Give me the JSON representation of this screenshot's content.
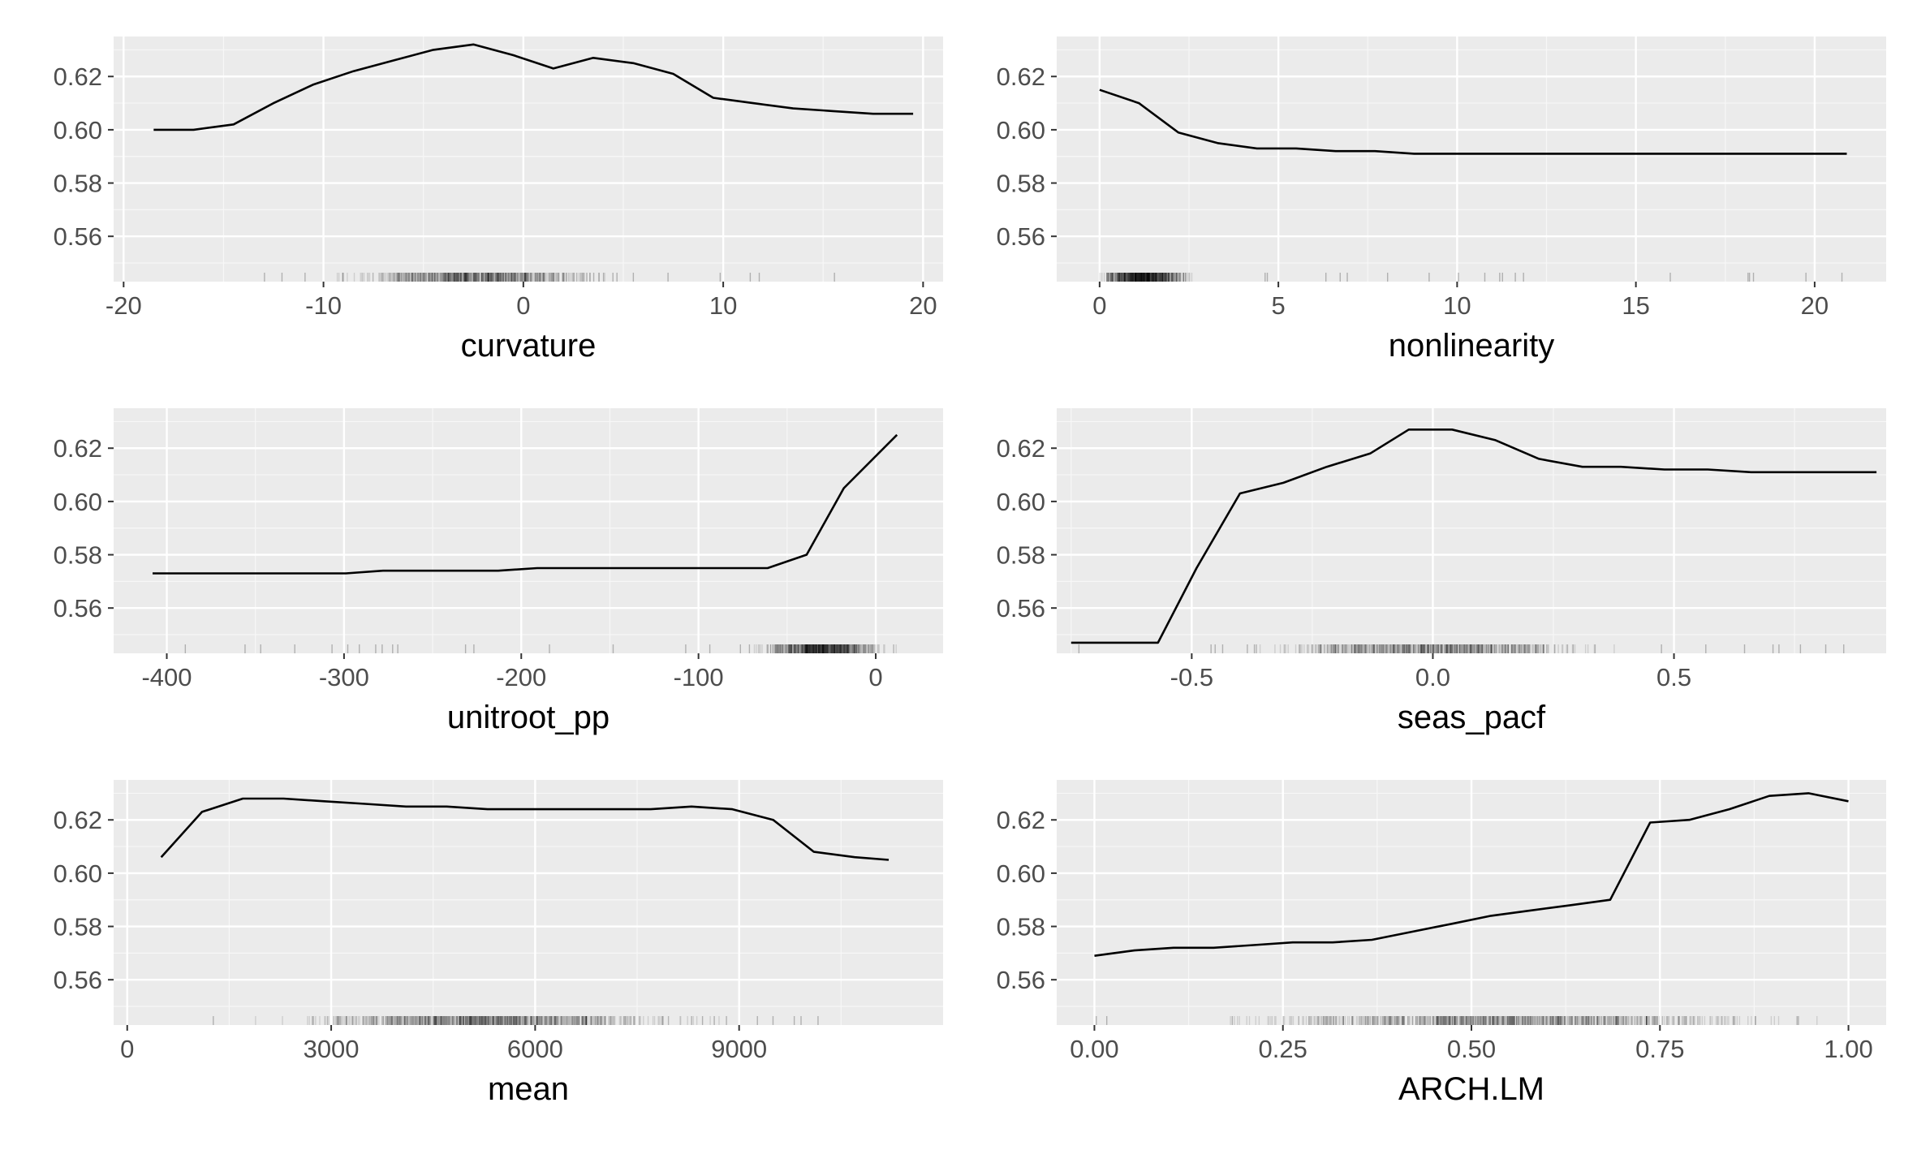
{
  "chart_data": [
    {
      "type": "line",
      "xlabel": "curvature",
      "ylabel": "",
      "xlim": [
        -20.5,
        21
      ],
      "ylim": [
        0.543,
        0.635
      ],
      "xticks": [
        -20,
        -10,
        0,
        10,
        20
      ],
      "xtick_labels": [
        "-20",
        "-10",
        "0",
        "10",
        "20"
      ],
      "yticks": [
        0.56,
        0.58,
        0.6,
        0.62
      ],
      "ytick_labels": [
        "0.56",
        "0.58",
        "0.60",
        "0.62"
      ],
      "grid": true,
      "rug": true,
      "x": [
        -18.5,
        -16.5,
        -14.5,
        -12.5,
        -10.5,
        -8.5,
        -6.5,
        -4.5,
        -2.5,
        -0.5,
        1.5,
        3.5,
        5.5,
        7.5,
        9.5,
        11.5,
        13.5,
        15.5,
        17.5,
        19.5
      ],
      "y": [
        0.6,
        0.6,
        0.602,
        0.61,
        0.617,
        0.622,
        0.626,
        0.63,
        0.632,
        0.628,
        0.623,
        0.627,
        0.625,
        0.621,
        0.612,
        0.61,
        0.608,
        0.607,
        0.606,
        0.606
      ]
    },
    {
      "type": "line",
      "xlabel": "nonlinearity",
      "ylabel": "",
      "xlim": [
        -1.2,
        22.0
      ],
      "ylim": [
        0.543,
        0.635
      ],
      "xticks": [
        0,
        5,
        10,
        15,
        20
      ],
      "xtick_labels": [
        "0",
        "5",
        "10",
        "15",
        "20"
      ],
      "yticks": [
        0.56,
        0.58,
        0.6,
        0.62
      ],
      "ytick_labels": [
        "0.56",
        "0.58",
        "0.60",
        "0.62"
      ],
      "grid": true,
      "rug": true,
      "x": [
        0,
        1.1,
        2.2,
        3.3,
        4.4,
        5.5,
        6.6,
        7.7,
        8.8,
        9.9,
        11.0,
        12.1,
        13.2,
        14.3,
        15.4,
        16.5,
        17.6,
        18.7,
        19.8,
        20.9
      ],
      "y": [
        0.615,
        0.61,
        0.599,
        0.595,
        0.593,
        0.593,
        0.592,
        0.592,
        0.591,
        0.591,
        0.591,
        0.591,
        0.591,
        0.591,
        0.591,
        0.591,
        0.591,
        0.591,
        0.591,
        0.591
      ]
    },
    {
      "type": "line",
      "xlabel": "unitroot_pp",
      "ylabel": "",
      "xlim": [
        -430,
        38
      ],
      "ylim": [
        0.543,
        0.635
      ],
      "xticks": [
        -400,
        -300,
        -200,
        -100,
        0
      ],
      "xtick_labels": [
        "-400",
        "-300",
        "-200",
        "-100",
        "0"
      ],
      "yticks": [
        0.56,
        0.58,
        0.6,
        0.62
      ],
      "ytick_labels": [
        "0.56",
        "0.58",
        "0.60",
        "0.62"
      ],
      "grid": true,
      "rug": true,
      "x": [
        -408,
        -386,
        -364,
        -343,
        -321,
        -299,
        -278,
        -256,
        -234,
        -213,
        -191,
        -169,
        -148,
        -126,
        -104,
        -83,
        -61,
        -39,
        -18,
        12
      ],
      "y": [
        0.573,
        0.573,
        0.573,
        0.573,
        0.573,
        0.573,
        0.574,
        0.574,
        0.574,
        0.574,
        0.575,
        0.575,
        0.575,
        0.575,
        0.575,
        0.575,
        0.575,
        0.58,
        0.605,
        0.625
      ]
    },
    {
      "type": "line",
      "xlabel": "seas_pacf",
      "ylabel": "",
      "xlim": [
        -0.78,
        0.94
      ],
      "ylim": [
        0.543,
        0.635
      ],
      "xticks": [
        -0.5,
        0.0,
        0.5
      ],
      "xtick_labels": [
        "-0.5",
        "0.0",
        "0.5"
      ],
      "yticks": [
        0.56,
        0.58,
        0.6,
        0.62
      ],
      "ytick_labels": [
        "0.56",
        "0.58",
        "0.60",
        "0.62"
      ],
      "grid": true,
      "rug": true,
      "x": [
        -0.75,
        -0.66,
        -0.57,
        -0.49,
        -0.4,
        -0.31,
        -0.22,
        -0.13,
        -0.05,
        0.04,
        0.13,
        0.22,
        0.31,
        0.39,
        0.48,
        0.57,
        0.66,
        0.74,
        0.83,
        0.92
      ],
      "y": [
        0.547,
        0.547,
        0.547,
        0.575,
        0.603,
        0.607,
        0.613,
        0.618,
        0.627,
        0.627,
        0.623,
        0.616,
        0.613,
        0.613,
        0.612,
        0.612,
        0.611,
        0.611,
        0.611,
        0.611
      ]
    },
    {
      "type": "line",
      "xlabel": "mean",
      "ylabel": "",
      "xlim": [
        -200,
        12000
      ],
      "ylim": [
        0.543,
        0.635
      ],
      "xticks": [
        0,
        3000,
        6000,
        9000
      ],
      "xtick_labels": [
        "0",
        "3000",
        "6000",
        "9000"
      ],
      "yticks": [
        0.56,
        0.58,
        0.6,
        0.62
      ],
      "ytick_labels": [
        "0.56",
        "0.58",
        "0.60",
        "0.62"
      ],
      "grid": true,
      "rug": true,
      "x": [
        500,
        1100,
        1700,
        2300,
        2900,
        3500,
        4100,
        4700,
        5300,
        5900,
        6500,
        7100,
        7700,
        8300,
        8900,
        9500,
        10100,
        10700,
        11200
      ],
      "y": [
        0.606,
        0.623,
        0.628,
        0.628,
        0.627,
        0.626,
        0.625,
        0.625,
        0.624,
        0.624,
        0.624,
        0.624,
        0.624,
        0.625,
        0.624,
        0.62,
        0.608,
        0.606,
        0.605
      ]
    },
    {
      "type": "line",
      "xlabel": "ARCH.LM",
      "ylabel": "",
      "xlim": [
        -0.05,
        1.05
      ],
      "ylim": [
        0.543,
        0.635
      ],
      "xticks": [
        0.0,
        0.25,
        0.5,
        0.75,
        1.0
      ],
      "xtick_labels": [
        "0.00",
        "0.25",
        "0.50",
        "0.75",
        "1.00"
      ],
      "yticks": [
        0.56,
        0.58,
        0.6,
        0.62
      ],
      "ytick_labels": [
        "0.56",
        "0.58",
        "0.60",
        "0.62"
      ],
      "grid": true,
      "rug": true,
      "x": [
        0.0,
        0.053,
        0.105,
        0.158,
        0.211,
        0.263,
        0.316,
        0.368,
        0.421,
        0.474,
        0.526,
        0.579,
        0.632,
        0.684,
        0.737,
        0.789,
        0.842,
        0.895,
        0.947,
        1.0
      ],
      "y": [
        0.569,
        0.571,
        0.572,
        0.572,
        0.573,
        0.574,
        0.574,
        0.575,
        0.578,
        0.581,
        0.584,
        0.586,
        0.588,
        0.59,
        0.619,
        0.62,
        0.624,
        0.629,
        0.63,
        0.627
      ]
    }
  ]
}
